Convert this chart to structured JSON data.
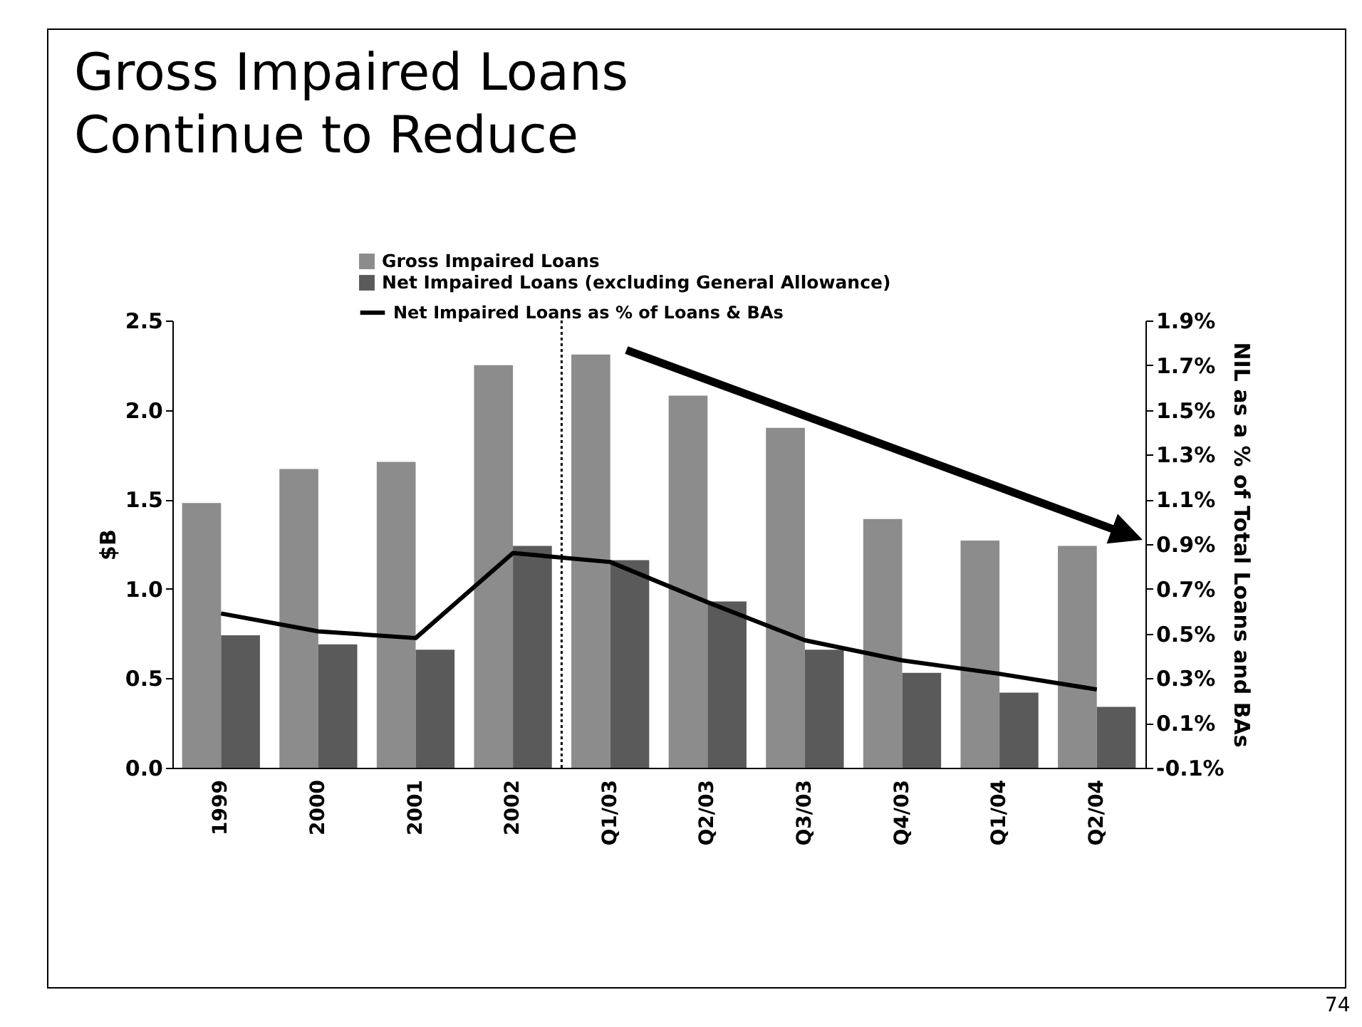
{
  "chart_data": {
    "type": "bar",
    "title": "Gross Impaired Loans Continue to Reduce",
    "categories": [
      "1999",
      "2000",
      "2001",
      "2002",
      "Q1/03",
      "Q2/03",
      "Q3/03",
      "Q4/03",
      "Q1/04",
      "Q2/04"
    ],
    "series": [
      {
        "name": "Gross Impaired Loans",
        "type": "bar",
        "color": "#8c8c8c",
        "values": [
          1.48,
          1.67,
          1.71,
          2.25,
          2.31,
          2.08,
          1.9,
          1.39,
          1.27,
          1.24
        ]
      },
      {
        "name": "Net Impaired Loans (excluding General Allowance)",
        "type": "bar",
        "color": "#5a5a5a",
        "values": [
          0.74,
          0.69,
          0.66,
          1.24,
          1.16,
          0.93,
          0.66,
          0.53,
          0.42,
          0.34
        ]
      },
      {
        "name": "Net Impaired Loans as % of Loans & BAs",
        "type": "line",
        "axis": "y2",
        "color": "#000000",
        "values": [
          0.59,
          0.51,
          0.48,
          0.86,
          0.82,
          0.64,
          0.47,
          0.38,
          0.32,
          0.25
        ]
      }
    ],
    "ylabel": "$B",
    "y2label": "NIL as  a % of Total Loans and BAs",
    "ylim": [
      0,
      2.5
    ],
    "yticks": [
      {
        "value": 0,
        "label": "0.0"
      },
      {
        "value": 0.5,
        "label": "0.5"
      },
      {
        "value": 1,
        "label": "1.0"
      },
      {
        "value": 1.5,
        "label": "1.5"
      },
      {
        "value": 2,
        "label": "2.0"
      },
      {
        "value": 2.5,
        "label": "2.5"
      }
    ],
    "y2lim": [
      -0.1,
      1.9
    ],
    "y2ticks": [
      {
        "value": -0.1,
        "label": "-0.1%"
      },
      {
        "value": 0.1,
        "label": "0.1%"
      },
      {
        "value": 0.3,
        "label": "0.3%"
      },
      {
        "value": 0.5,
        "label": "0.5%"
      },
      {
        "value": 0.7,
        "label": "0.7%"
      },
      {
        "value": 0.9,
        "label": "0.9%"
      },
      {
        "value": 1.1,
        "label": "1.1%"
      },
      {
        "value": 1.3,
        "label": "1.3%"
      },
      {
        "value": 1.5,
        "label": "1.5%"
      },
      {
        "value": 1.7,
        "label": "1.7%"
      },
      {
        "value": 1.9,
        "label": "1.9%"
      }
    ],
    "annotations": [
      "74"
    ],
    "legend": "top left",
    "grid": false,
    "marker": "none",
    "line_style": "solid"
  }
}
